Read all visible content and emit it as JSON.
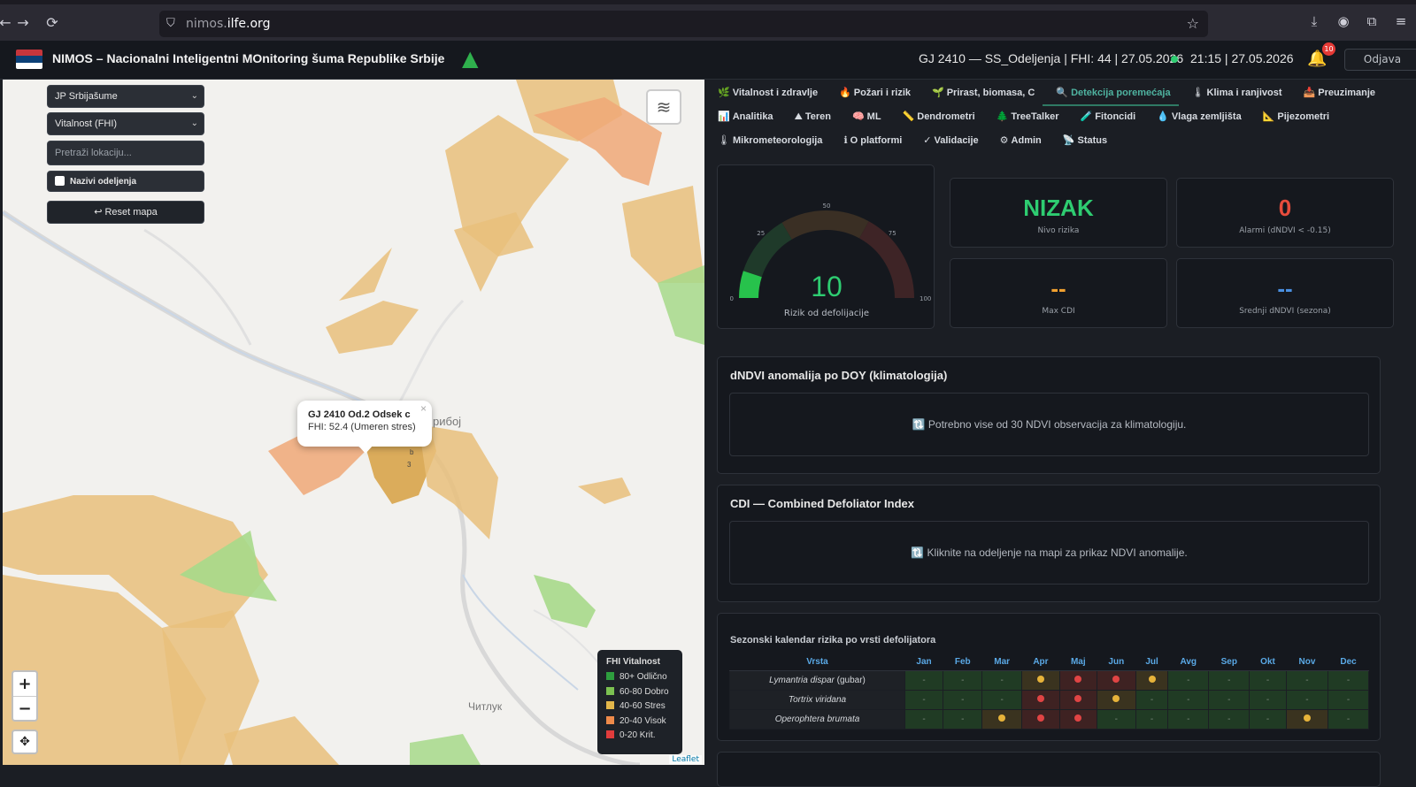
{
  "browser": {
    "url_host": "nimos.",
    "url_domain": "ilfe.org"
  },
  "header": {
    "title": "NIMOS – Nacionalni Inteligentni MOnitoring šuma Republike Srbije",
    "status": "GJ 2410 — SS_Odeljenja | FHI: 44 | 27.05.2026",
    "time": "21:15 | 27.05.2026",
    "notifications": "10",
    "logout": "Odjava"
  },
  "map": {
    "org_select": "JP Srbijašume",
    "layer_select": "Vitalnost (FHI)",
    "search_placeholder": "Pretraži lokaciju...",
    "checkbox_label": "Nazivi odeljenja",
    "reset_label": "↩ Reset mapa",
    "popup_title": "GJ 2410 Od.2 Odsek c",
    "popup_body": "FHI: 52.4 (Umeren stres)",
    "town_label": "рибој",
    "chitluk_label": "Читлук",
    "attribution": "Leaflet",
    "legend": {
      "title": "FHI Vitalnost",
      "items": [
        {
          "label": "80+ Odlično",
          "color": "#2e9e3e"
        },
        {
          "label": "60-80 Dobro",
          "color": "#7cc151"
        },
        {
          "label": "40-60 Stres",
          "color": "#e2b64a"
        },
        {
          "label": "20-40 Visok",
          "color": "#ee8a4a"
        },
        {
          "label": "0-20 Krit.",
          "color": "#e03c3c"
        }
      ]
    }
  },
  "tabs": {
    "row1": [
      {
        "icon": "🌿",
        "label": "Vitalnost i zdravlje"
      },
      {
        "icon": "🔥",
        "label": "Požari i rizik"
      },
      {
        "icon": "🌱",
        "label": "Prirast, biomasa, C"
      },
      {
        "icon": "🔍",
        "label": "Detekcija poremećaja"
      },
      {
        "icon": "🌡",
        "label": "Klima i ranjivost"
      },
      {
        "icon": "📥",
        "label": "Preuzimanje"
      }
    ],
    "row2": [
      {
        "icon": "📊",
        "label": "Analitika"
      },
      {
        "icon": "⛰",
        "label": "Teren"
      },
      {
        "icon": "🧠",
        "label": "ML"
      },
      {
        "icon": "📏",
        "label": "Dendrometri"
      },
      {
        "icon": "🌲",
        "label": "TreeTalker"
      },
      {
        "icon": "🧪",
        "label": "Fitoncidi"
      },
      {
        "icon": "💧",
        "label": "Vlaga zemljišta"
      },
      {
        "icon": "📐",
        "label": "Pijezometri"
      }
    ],
    "row3": [
      {
        "icon": "🌡",
        "label": "Mikrometeorologija"
      },
      {
        "icon": "ℹ",
        "label": "O platformi"
      },
      {
        "icon": "✓",
        "label": "Validacije"
      },
      {
        "icon": "⚙",
        "label": "Admin"
      },
      {
        "icon": "📡",
        "label": "Status"
      }
    ]
  },
  "gauge": {
    "value": "10",
    "value_num": 10,
    "max": 100,
    "label": "Rizik od defolijacije",
    "ticks": [
      "0",
      "25",
      "50",
      "75",
      "100"
    ]
  },
  "stats": {
    "risk_level": {
      "value": "NIZAK",
      "label": "Nivo rizika",
      "color": "#2ecc71"
    },
    "alarms": {
      "value": "0",
      "label": "Alarmi (dNDVI < -0.15)",
      "color": "#e74c3c"
    },
    "max_cdi": {
      "value": "--",
      "label": "Max CDI",
      "color": "#f0a030"
    },
    "mean_dndvi": {
      "value": "--",
      "label": "Srednji dNDVI (sezona)",
      "color": "#4a90e2"
    }
  },
  "sections": {
    "dndvi_title": "dNDVI anomalija po DOY (klimatologija)",
    "dndvi_msg": "🔃 Potrebno vise od 30 NDVI observacija za klimatologiju.",
    "cdi_title": "CDI — Combined Defoliator Index",
    "cdi_msg": "🔃 Kliknite na odeljenje na mapi za prikaz NDVI anomalije."
  },
  "calendar": {
    "title": "Sezonski kalendar rizika po vrsti defolijatora",
    "species_header": "Vrsta",
    "months": [
      "Jan",
      "Feb",
      "Mar",
      "Apr",
      "Maj",
      "Jun",
      "Jul",
      "Avg",
      "Sep",
      "Okt",
      "Nov",
      "Dec"
    ],
    "empty_mark": "-",
    "rows": [
      {
        "species": "Lymantria dispar",
        "suffix": " (gubar)",
        "levels": [
          0,
          0,
          0,
          1,
          2,
          2,
          1,
          0,
          0,
          0,
          0,
          0
        ]
      },
      {
        "species": "Tortrix viridana",
        "suffix": "",
        "levels": [
          0,
          0,
          0,
          2,
          2,
          1,
          0,
          0,
          0,
          0,
          0,
          0
        ]
      },
      {
        "species": "Operophtera brumata",
        "suffix": "",
        "levels": [
          0,
          0,
          1,
          2,
          2,
          0,
          0,
          0,
          0,
          0,
          1,
          0
        ]
      }
    ]
  }
}
